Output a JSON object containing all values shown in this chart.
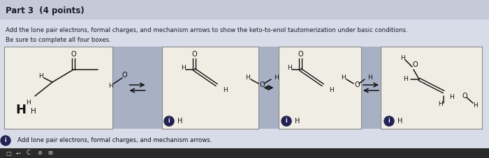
{
  "title": "Part 3  (4 points)",
  "instruction_line1": "Add the lone pair electrons, formal charges, and mechanism arrows to show the keto-to-enol tautomerization under basic conditions.",
  "instruction_line2": "Be sure to complete all four boxes.",
  "footer_note": "ⓘ  Add lone pair electrons, formal charges, and mechanism arrows.",
  "bg_color": "#d8dce8",
  "header_bg": "#c5cad8",
  "content_bg": "#d8dce8",
  "box_bg": "#f0ede4",
  "box_border": "#888888",
  "arrow_band_color": "#a8b0c4",
  "text_color": "#1a1a2e",
  "toolbar_bg": "#2a2a2a",
  "mol_color": "#111111",
  "info_color": "#222255"
}
